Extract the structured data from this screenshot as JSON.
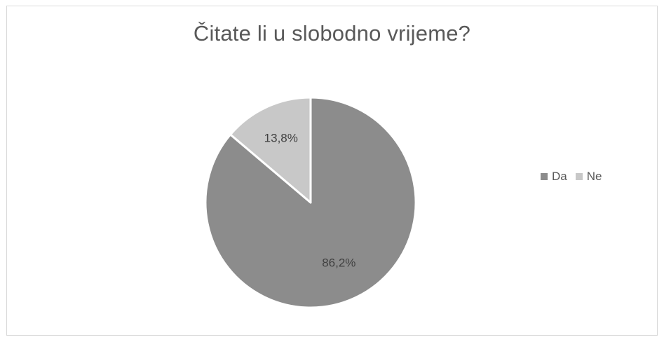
{
  "chart_data": {
    "type": "pie",
    "title": "Čitate li u slobodno vrijeme?",
    "categories": [
      "Da",
      "Ne"
    ],
    "values": [
      86.2,
      13.8
    ],
    "data_labels": [
      "86,2%",
      "13,8%"
    ],
    "colors": [
      "#8c8c8c",
      "#c8c8c8"
    ],
    "legend_position": "right",
    "start_angle_deg": 0,
    "direction": "clockwise"
  },
  "legend": {
    "items": [
      {
        "label": "Da",
        "color": "#8c8c8c"
      },
      {
        "label": "Ne",
        "color": "#c8c8c8"
      }
    ]
  }
}
